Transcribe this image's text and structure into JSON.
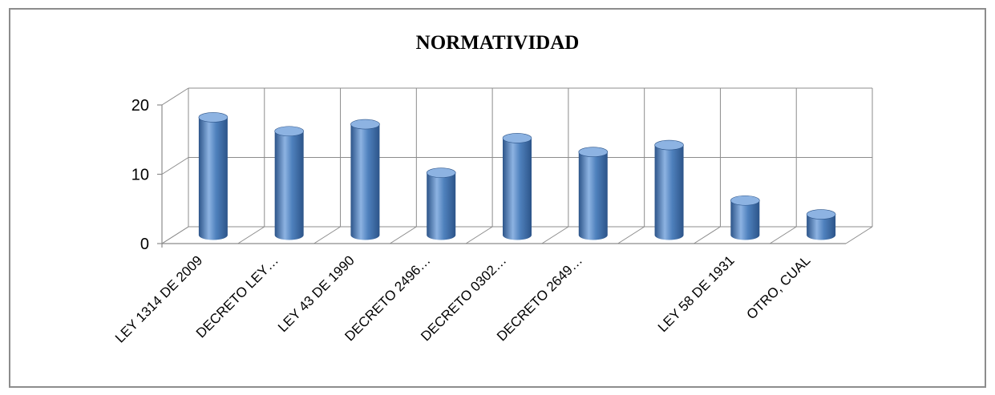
{
  "chart_data": {
    "type": "bar",
    "title": "NORMATIVIDAD",
    "categories": [
      "LEY 1314 DE 2009",
      "DECRETO LEY…",
      "LEY 43 DE 1990",
      "DECRETO 2496…",
      "DECRETO 0302…",
      "DECRETO 2649…",
      "",
      "LEY 58 DE 1931",
      "OTRO, CUAL"
    ],
    "values": [
      17,
      15,
      16,
      9,
      14,
      12,
      13,
      5,
      3
    ],
    "ylim": [
      0,
      20
    ],
    "yticks": [
      0,
      10,
      20
    ],
    "grid": true,
    "style": "3d-cylinder",
    "bar_color": "#4f81bd",
    "bar_color_dark": "#2c5489",
    "bar_color_light": "#8db3e2"
  }
}
